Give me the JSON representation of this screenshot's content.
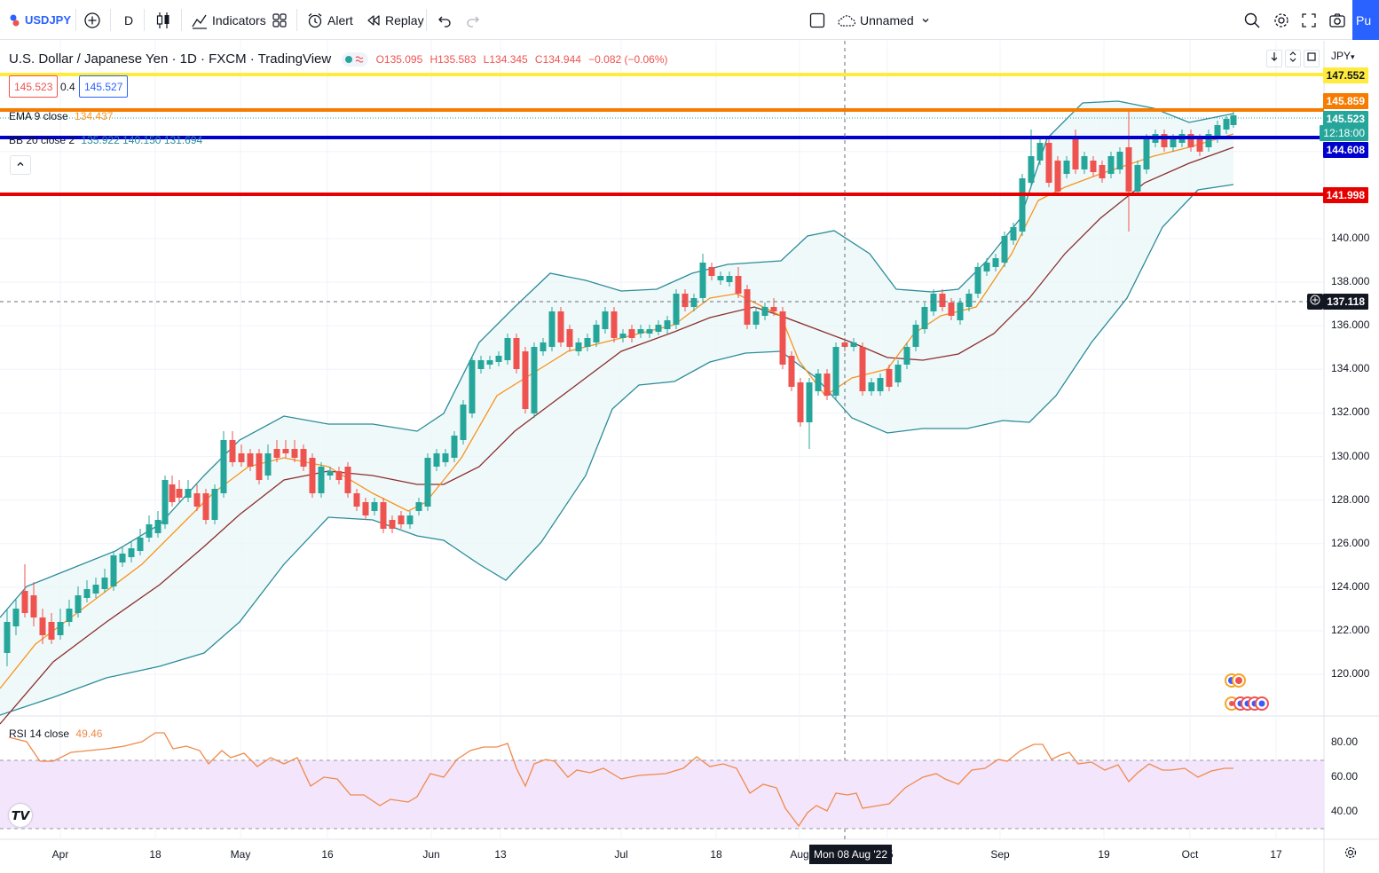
{
  "toolbar": {
    "symbol": "USDJPY",
    "interval": "D",
    "indicators_label": "Indicators",
    "alert_label": "Alert",
    "replay_label": "Replay",
    "layout_name": "Unnamed",
    "publish_label": "Pu"
  },
  "legend": {
    "title": "U.S. Dollar / Japanese Yen · 1D · FXCM · TradingView",
    "open": "O135.095",
    "high": "H135.583",
    "low": "L134.345",
    "close": "C134.944",
    "change": "−0.082 (−0.06%)",
    "bid": "145.523",
    "spread": "0.4",
    "ask": "145.527",
    "ema_label": "EMA 9 close",
    "ema_value": "134.437",
    "bb_label": "BB 20 close 2",
    "bb_values": "135.922  140.150  131.694",
    "rsi_label": "RSI 14 close",
    "rsi_value": "49.46"
  },
  "price_axis": {
    "currency": "JPY",
    "ticks": [
      "140.000",
      "138.000",
      "136.000",
      "134.000",
      "132.000",
      "130.000",
      "128.000",
      "126.000",
      "124.000",
      "122.000",
      "120.000"
    ],
    "rsi_ticks": [
      "80.00",
      "60.00",
      "40.00"
    ],
    "labels": {
      "line_yellow": "147.552",
      "line_orange": "145.859",
      "last_price": "145.523",
      "countdown": "12:18:00",
      "line_blue": "144.608",
      "line_red": "141.998",
      "crosshair": "137.118"
    }
  },
  "time_axis": {
    "labels": [
      "Apr",
      "18",
      "May",
      "16",
      "Jun",
      "13",
      "Jul",
      "18",
      "Aug",
      "15",
      "Sep",
      "19",
      "Oct",
      "17"
    ],
    "crosshair_label": "Mon 08 Aug '22"
  },
  "colors": {
    "up": "#26a69a",
    "down": "#ef5350",
    "yellow_line": "#ffeb3b",
    "orange_line": "#f57c00",
    "blue_line": "#0000cc",
    "red_line": "#e60000",
    "ema": "#f7941d",
    "bb_basis": "#8b2e2e",
    "bb_band": "#2a8c99",
    "rsi": "#f08a4b",
    "rsi_band": "#f3e5fc"
  }
}
